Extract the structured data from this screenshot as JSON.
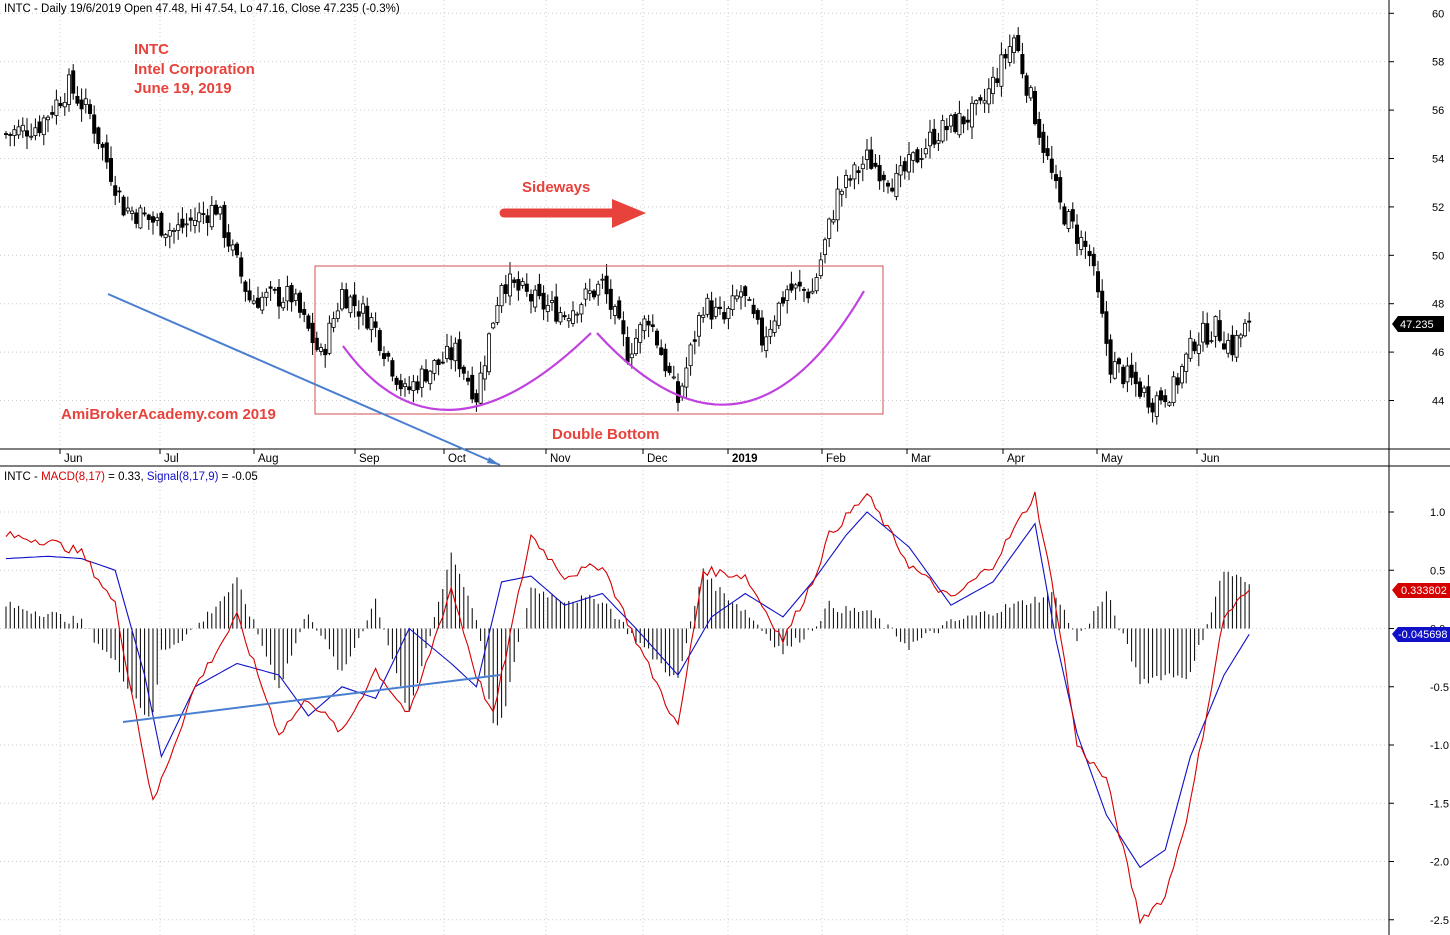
{
  "header": {
    "price_info": "INTC - Daily 19/6/2019 Open 47.48, Hi 47.54, Lo 47.16, Close 47.235 (-0.3%)",
    "macd_ticker": "INTC - ",
    "macd_label": "MACD(8,17)",
    "macd_value": " = 0.33, ",
    "signal_label": "Signal(8,17,9)",
    "signal_value": " = -0.05"
  },
  "annotations": {
    "ticker": "INTC",
    "company": "Intel Corporation",
    "date": "June 19, 2019",
    "watermark": "AmiBrokerAcademy.com  2019",
    "sideways": "Sideways",
    "double_bottom": "Double Bottom"
  },
  "colors": {
    "annotation_red": "#e8423c",
    "macd_line": "#d40000",
    "signal_line": "#1010c8",
    "trendline": "#4a7fd0",
    "curve": "#c040e0",
    "box": "#d05050",
    "grid": "#cccccc"
  },
  "badges": {
    "price": "47.235",
    "macd": "0.333802",
    "signal": "-0.045698"
  },
  "chart_data": [
    {
      "type": "candlestick",
      "ylim": [
        42,
        61
      ],
      "y_ticks": [
        "44",
        "46",
        "48",
        "50",
        "52",
        "54",
        "56",
        "58",
        "60"
      ],
      "x_labels": [
        "Jun",
        "Jul",
        "Aug",
        "Sep",
        "Oct",
        "Nov",
        "Dec",
        "2019",
        "Feb",
        "Mar",
        "Apr",
        "May",
        "Jun"
      ],
      "last_close": 47.235,
      "anchors": {
        "x": [
          0,
          8,
          15,
          20,
          28,
          40,
          50,
          58,
          68,
          75,
          80,
          87,
          95,
          100,
          107,
          112,
          118,
          127,
          133,
          142,
          148,
          153,
          160,
          166,
          171,
          175,
          180,
          186,
          192,
          198,
          205,
          212,
          221,
          232,
          240,
          251,
          258,
          263,
          268,
          273,
          278,
          283,
          288,
          292,
          296
        ],
        "close": [
          55.0,
          55.4,
          57.0,
          55.8,
          52.0,
          51.0,
          52.0,
          48.2,
          48.3,
          45.8,
          48.5,
          47.3,
          44.3,
          45.2,
          46.0,
          44.2,
          49.0,
          48.0,
          47.6,
          48.8,
          46.0,
          47.5,
          44.0,
          48.0,
          47.3,
          48.5,
          46.5,
          48.6,
          48.5,
          52.5,
          54.0,
          53.0,
          55.0,
          56.0,
          59.0,
          52.0,
          50.0,
          45.5,
          44.8,
          44.0,
          44.5,
          46.5,
          47.0,
          46.2,
          47.235
        ]
      }
    },
    {
      "type": "line",
      "ylim": [
        -2.6,
        1.4
      ],
      "y_ticks": [
        "1.0",
        "0.5",
        "0.0",
        "-0.5",
        "-1.0",
        "-1.5",
        "-2.0",
        "-2.5"
      ],
      "macd_value": 0.33,
      "signal_value": -0.05,
      "series": [
        {
          "name": "MACD(8,17)",
          "x": [
            0,
            10,
            18,
            26,
            35,
            45,
            55,
            65,
            72,
            80,
            88,
            96,
            106,
            112,
            116,
            125,
            133,
            142,
            150,
            160,
            166,
            176,
            185,
            192,
            196,
            205,
            215,
            225,
            235,
            245,
            250,
            255,
            262,
            270,
            276,
            282,
            290,
            296
          ],
          "values": [
            0.8,
            0.75,
            0.65,
            0.2,
            -1.5,
            -0.5,
            0.1,
            -0.9,
            -0.6,
            -0.9,
            -0.35,
            -0.75,
            0.35,
            -0.4,
            -0.75,
            0.8,
            0.45,
            0.55,
            -0.1,
            -0.85,
            0.5,
            0.45,
            -0.1,
            0.4,
            0.8,
            1.15,
            0.55,
            0.25,
            0.55,
            1.15,
            0.2,
            -1.0,
            -1.3,
            -2.5,
            -2.3,
            -1.5,
            0.1,
            0.33
          ]
        },
        {
          "name": "Signal(8,17,9)",
          "x": [
            0,
            10,
            18,
            26,
            33,
            37,
            45,
            55,
            65,
            72,
            80,
            88,
            96,
            106,
            112,
            118,
            125,
            133,
            142,
            150,
            160,
            168,
            176,
            185,
            192,
            200,
            205,
            215,
            225,
            235,
            245,
            250,
            255,
            262,
            270,
            276,
            282,
            290,
            296
          ],
          "values": [
            0.6,
            0.62,
            0.6,
            0.5,
            -0.4,
            -1.1,
            -0.5,
            -0.3,
            -0.4,
            -0.75,
            -0.5,
            -0.6,
            0.0,
            -0.3,
            -0.5,
            0.4,
            0.45,
            0.2,
            0.3,
            0.0,
            -0.4,
            0.1,
            0.3,
            0.1,
            0.4,
            0.8,
            1.0,
            0.7,
            0.2,
            0.4,
            0.9,
            -0.1,
            -0.9,
            -1.6,
            -2.05,
            -1.9,
            -1.1,
            -0.4,
            -0.05
          ]
        }
      ]
    }
  ]
}
